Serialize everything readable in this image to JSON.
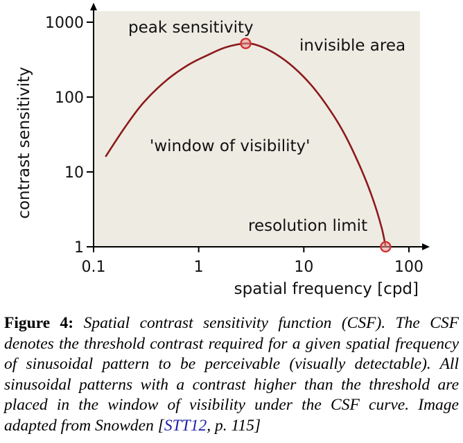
{
  "chart_data": {
    "type": "line",
    "xlabel": "spatial frequency [cpd]",
    "ylabel": "contrast sensitivity",
    "x_scale": "log",
    "y_scale": "log",
    "xlim": [
      0.1,
      100
    ],
    "ylim": [
      1,
      1000
    ],
    "x_ticks": [
      "0.1",
      "1",
      "10",
      "100"
    ],
    "y_ticks": [
      "1",
      "10",
      "100",
      "1000"
    ],
    "colors": {
      "plot_bg": "#eeebe3",
      "curve": "#8b1a1a",
      "marker": "#d23232"
    },
    "series": [
      {
        "x": [
          0.13,
          0.2,
          0.3,
          0.5,
          0.8,
          1.2,
          1.8,
          2.8,
          3.8,
          5.5,
          8,
          12,
          18,
          25,
          35,
          45,
          55,
          60
        ],
        "y": [
          16,
          40,
          85,
          170,
          270,
          360,
          460,
          520,
          480,
          370,
          250,
          140,
          65,
          30,
          11,
          4.5,
          1.8,
          1
        ]
      }
    ],
    "markers": [
      {
        "x": 2.8,
        "y": 520
      },
      {
        "x": 60,
        "y": 1
      }
    ],
    "annotations": [
      {
        "text": "peak sensitivity"
      },
      {
        "text": "invisible area"
      },
      {
        "text": "'window of visibility'"
      },
      {
        "text": "resolution limit"
      }
    ]
  },
  "caption": {
    "label": "Figure 4:",
    "text_before": "Spatial contrast sensitivity function (CSF). The CSF denotes the threshold contrast required for a given spatial frequency of sinusoidal pattern to be perceivable (visually detectable). All sinusoidal patterns with a contrast higher than the threshold are placed in the window of visibility under the CSF curve. Image adapted from Snowden [",
    "citation": "STT12",
    "text_after": ", p. 115]"
  }
}
